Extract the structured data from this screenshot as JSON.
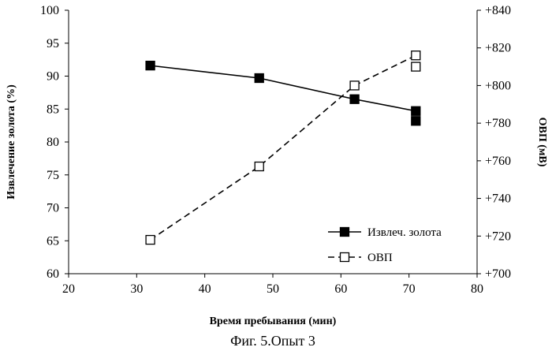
{
  "chart_data": {
    "type": "line",
    "caption": "Фиг. 5.Опыт 3",
    "xlabel": "Время пребывания (мин)",
    "ylabel_left": "Извлечение золота (%)",
    "ylabel_right": "ОВП (мВ)",
    "xlim": [
      20,
      80
    ],
    "ylim_left": [
      60,
      100
    ],
    "ylim_right": [
      700,
      840
    ],
    "x_ticks": [
      "20",
      "30",
      "40",
      "50",
      "60",
      "70",
      "80"
    ],
    "y_left_ticks": [
      "60",
      "65",
      "70",
      "75",
      "80",
      "85",
      "90",
      "95",
      "100"
    ],
    "y_right_ticks": [
      "+700",
      "+720",
      "+740",
      "+760",
      "+780",
      "+800",
      "+820",
      "+840"
    ],
    "grid": false,
    "legend_position": "bottom-right",
    "series": [
      {
        "name": "Извлеч. золота",
        "axis": "left",
        "marker": "filled-square",
        "line": "solid",
        "color": "#000000",
        "points": [
          {
            "x": 32,
            "y": 91.6
          },
          {
            "x": 48,
            "y": 89.7
          },
          {
            "x": 62,
            "y": 86.5
          },
          {
            "x": 71,
            "y": 84.7
          }
        ],
        "extra_points": [
          {
            "x": 71,
            "y": 83.2
          }
        ]
      },
      {
        "name": "ОВП",
        "axis": "right",
        "marker": "open-square",
        "line": "dashed",
        "color": "#000000",
        "points": [
          {
            "x": 32,
            "y": 718
          },
          {
            "x": 48,
            "y": 757
          },
          {
            "x": 62,
            "y": 800
          },
          {
            "x": 71,
            "y": 816
          }
        ],
        "extra_points": [
          {
            "x": 71,
            "y": 810
          }
        ]
      }
    ]
  }
}
